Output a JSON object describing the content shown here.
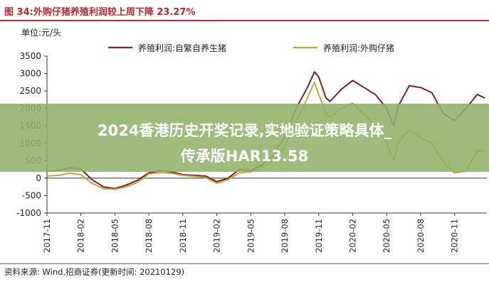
{
  "figure": {
    "title": "图 34:外购仔猪养殖利润较上周下降 23.27%",
    "source": "资料来源: Wind,招商证券(更新时间: 20210129)"
  },
  "overlay": {
    "line1": "2024香港历史开奖记录,实地验证策略具体_",
    "line2": "传承版HAR13.58"
  },
  "colors": {
    "series1": "#7a2129",
    "series2": "#c4a23e",
    "title": "#b5292f",
    "banner": "#91b269"
  },
  "chart_data": {
    "type": "line",
    "unit_label": "单位:元/头",
    "ylim": [
      -1000,
      3500
    ],
    "yticks": [
      "3500",
      "3000",
      "2500",
      "2000",
      "1500",
      "1000",
      "500",
      "0",
      "-500",
      "-1000"
    ],
    "ytick_values": [
      3500,
      3000,
      2500,
      2000,
      1500,
      1000,
      500,
      0,
      -500,
      -1000
    ],
    "xticks": [
      "2017-11",
      "2018-02",
      "2018-05",
      "2018-08",
      "2018-11",
      "2019-02",
      "2019-05",
      "2019-08",
      "2019-11",
      "2020-02",
      "2020-05",
      "2020-08",
      "2020-11"
    ],
    "x_range": [
      "2017-11",
      "2021-01"
    ],
    "legend_position": "top",
    "grid": false,
    "series": [
      {
        "name": "养殖利润:自繁自养生猪",
        "points": [
          [
            "2017-11",
            200
          ],
          [
            "2017-12",
            220
          ],
          [
            "2018-01",
            300
          ],
          [
            "2018-02",
            260
          ],
          [
            "2018-03",
            -50
          ],
          [
            "2018-04",
            -250
          ],
          [
            "2018-05",
            -300
          ],
          [
            "2018-06",
            -200
          ],
          [
            "2018-07",
            -60
          ],
          [
            "2018-08",
            150
          ],
          [
            "2018-09",
            220
          ],
          [
            "2018-10",
            180
          ],
          [
            "2018-11",
            100
          ],
          [
            "2018-12",
            80
          ],
          [
            "2019-01",
            60
          ],
          [
            "2019-02",
            -100
          ],
          [
            "2019-03",
            0
          ],
          [
            "2019-04",
            250
          ],
          [
            "2019-05",
            220
          ],
          [
            "2019-06",
            380
          ],
          [
            "2019-07",
            650
          ],
          [
            "2019-08",
            1200
          ],
          [
            "2019-09",
            2000
          ],
          [
            "2019-10",
            2600
          ],
          [
            "2019-10-20",
            3050
          ],
          [
            "2019-11",
            2900
          ],
          [
            "2019-11-20",
            2300
          ],
          [
            "2019-12",
            2200
          ],
          [
            "2020-01",
            2550
          ],
          [
            "2020-02",
            2800
          ],
          [
            "2020-03",
            2600
          ],
          [
            "2020-04",
            2400
          ],
          [
            "2020-05",
            2000
          ],
          [
            "2020-05-20",
            1500
          ],
          [
            "2020-06",
            2050
          ],
          [
            "2020-07",
            2650
          ],
          [
            "2020-08",
            2600
          ],
          [
            "2020-09",
            2450
          ],
          [
            "2020-10",
            1850
          ],
          [
            "2020-11",
            1650
          ],
          [
            "2020-12",
            2000
          ],
          [
            "2021-01",
            2400
          ],
          [
            "2021-01-20",
            2300
          ]
        ]
      },
      {
        "name": "养殖利润:外购仔猪",
        "points": [
          [
            "2017-11",
            60
          ],
          [
            "2017-12",
            80
          ],
          [
            "2018-01",
            140
          ],
          [
            "2018-02",
            100
          ],
          [
            "2018-03",
            -150
          ],
          [
            "2018-04",
            -300
          ],
          [
            "2018-05",
            -320
          ],
          [
            "2018-06",
            -250
          ],
          [
            "2018-07",
            -120
          ],
          [
            "2018-08",
            120
          ],
          [
            "2018-09",
            160
          ],
          [
            "2018-10",
            140
          ],
          [
            "2018-11",
            80
          ],
          [
            "2018-12",
            50
          ],
          [
            "2019-01",
            20
          ],
          [
            "2019-02",
            -150
          ],
          [
            "2019-03",
            -40
          ],
          [
            "2019-04",
            150
          ],
          [
            "2019-05",
            180
          ],
          [
            "2019-06",
            300
          ],
          [
            "2019-07",
            500
          ],
          [
            "2019-08",
            900
          ],
          [
            "2019-09",
            1600
          ],
          [
            "2019-10",
            2300
          ],
          [
            "2019-10-20",
            2750
          ],
          [
            "2019-11",
            2400
          ],
          [
            "2019-11-20",
            1850
          ],
          [
            "2019-12",
            1750
          ],
          [
            "2020-01",
            2000
          ],
          [
            "2020-02",
            2150
          ],
          [
            "2020-03",
            1850
          ],
          [
            "2020-04",
            1500
          ],
          [
            "2020-05",
            1000
          ],
          [
            "2020-05-20",
            500
          ],
          [
            "2020-06",
            1000
          ],
          [
            "2020-07",
            1400
          ],
          [
            "2020-08",
            1150
          ],
          [
            "2020-09",
            1000
          ],
          [
            "2020-10",
            450
          ],
          [
            "2020-11",
            150
          ],
          [
            "2020-12",
            200
          ],
          [
            "2021-01",
            800
          ],
          [
            "2021-01-20",
            750
          ]
        ]
      }
    ]
  }
}
